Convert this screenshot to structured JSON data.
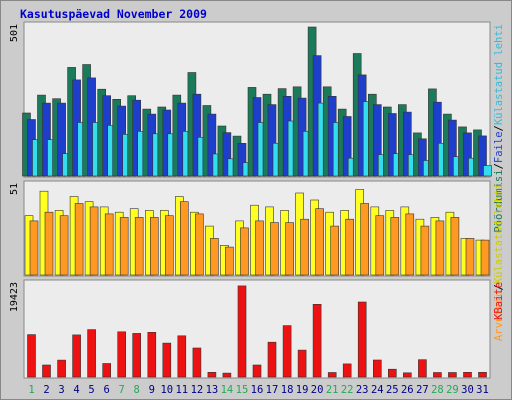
{
  "chart_data": {
    "type": "bar",
    "title": "Kasutuspäevad November 2009",
    "categories": [
      "1",
      "2",
      "3",
      "4",
      "5",
      "6",
      "7",
      "8",
      "9",
      "10",
      "11",
      "12",
      "13",
      "14",
      "15",
      "16",
      "17",
      "18",
      "19",
      "20",
      "21",
      "22",
      "23",
      "24",
      "25",
      "26",
      "27",
      "28",
      "29",
      "30",
      "31"
    ],
    "weekend_categories": [
      "1",
      "7",
      "8",
      "14",
      "15",
      "21",
      "22",
      "28",
      "29"
    ],
    "panels": [
      {
        "id": "top",
        "ymax_label": "501",
        "ymax": 501,
        "series": [
          {
            "name": "Pöördumisi",
            "color": "#1a7a5a",
            "values": [
              212,
              272,
              260,
              365,
              375,
              292,
              258,
              270,
              225,
              232,
              272,
              348,
              237,
              168,
              134,
              298,
              275,
              294,
              300,
              501,
              300,
              225,
              412,
              275,
              232,
              240,
              145,
              293,
              208,
              165,
              155
            ]
          },
          {
            "name": "Faile",
            "color": "#1e3fcc",
            "values": [
              190,
              245,
              245,
              323,
              330,
              270,
              235,
              255,
              208,
              222,
              245,
              275,
              208,
              146,
              110,
              264,
              240,
              268,
              262,
              405,
              268,
              200,
              340,
              240,
              210,
              215,
              125,
              248,
              188,
              145,
              135
            ]
          },
          {
            "name": "Külastatud lehti",
            "color": "#33ddee",
            "values": [
              122,
              122,
              75,
              180,
              180,
              170,
              140,
              150,
              142,
              142,
              150,
              130,
              74,
              58,
              45,
              180,
              110,
              185,
              150,
              245,
              180,
              60,
              250,
              72,
              75,
              72,
              52,
              110,
              65,
              60,
              35
            ]
          }
        ]
      },
      {
        "id": "middle",
        "ymax_label": "51",
        "ymax": 51,
        "series": [
          {
            "name": "Külastatud lehti",
            "color": "#ffff22",
            "values": [
              34,
              48,
              37,
              45,
              42,
              39,
              36,
              38,
              37,
              37,
              45,
              36,
              28,
              17,
              31,
              40,
              39,
              37,
              47,
              43,
              36,
              37,
              49,
              39,
              37,
              39,
              32,
              33,
              36,
              21,
              20
            ]
          },
          {
            "name": "Arvuteid",
            "color": "#ff9922",
            "values": [
              31,
              36,
              34,
              41,
              39,
              35,
              33,
              33,
              33,
              34,
              42,
              35,
              21,
              16,
              27,
              31,
              30,
              30,
              32,
              38,
              28,
              32,
              41,
              34,
              33,
              35,
              28,
              31,
              33,
              21,
              20
            ]
          }
        ]
      },
      {
        "id": "bottom",
        "ymax_label": "19423",
        "ymax": 19423,
        "series": [
          {
            "name": "KBaite",
            "color": "#ee1111",
            "values": [
              8960,
              2530,
              3560,
              8890,
              10000,
              2840,
              9540,
              9210,
              9440,
              7160,
              8700,
              6130,
              1000,
              820,
              19230,
              2530,
              7350,
              10850,
              5670,
              15340,
              950,
              2760,
              15840,
              3580,
              1650,
              890,
              3660,
              940,
              950,
              1000,
              1000
            ]
          }
        ]
      }
    ],
    "right_labels": {
      "top_panel": [
        "Pöördumisi",
        "/",
        "Faile",
        "/",
        "Külastatud lehti"
      ],
      "middle_panel": [
        "Arvuteid",
        "/",
        "Külastatud lehti"
      ],
      "bottom_panel": [
        "KBaite"
      ]
    },
    "colors": {
      "frame_background": "#cccccc",
      "plot_background": "#ececec",
      "title": "#0000cc",
      "weekend_label": "#22aa55",
      "weekday_label": "#000088"
    },
    "grid": false,
    "legend": "right-vertical"
  }
}
